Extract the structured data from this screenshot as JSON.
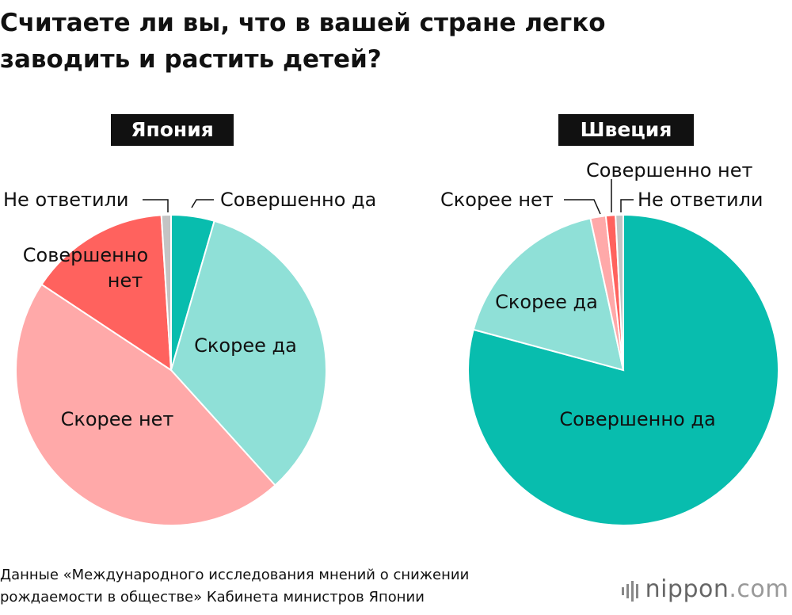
{
  "header": {
    "title": "Считаете ли вы, что в вашей стране легко заводить и растить детей?"
  },
  "footer": {
    "source_line1": "Данные «Международного исследования мнений о снижении",
    "source_line2": "рождаемости в обществе» Кабинета министров Японии",
    "logo_name": "nippon",
    "logo_suffix": ".com"
  },
  "chart_data": [
    {
      "type": "pie",
      "title": "Япония",
      "slices": [
        {
          "label": "Совершенно да",
          "value": 4.5,
          "color": "#08bdae"
        },
        {
          "label": "Скорее да",
          "value": 33.8,
          "color": "#8fe0d7"
        },
        {
          "label": "Скорее нет",
          "value": 46.0,
          "color": "#ffa9a9"
        },
        {
          "label": "Совершенно нет",
          "value": 14.7,
          "color": "#ff625e"
        },
        {
          "label": "Не ответили",
          "value": 1.0,
          "color": "#c4c4c4"
        }
      ]
    },
    {
      "type": "pie",
      "title": "Швеция",
      "slices": [
        {
          "label": "Совершенно да",
          "value": 79.2,
          "color": "#08bdae"
        },
        {
          "label": "Скорее да",
          "value": 17.4,
          "color": "#8fe0d7"
        },
        {
          "label": "Скорее нет",
          "value": 1.6,
          "color": "#ffa9a9"
        },
        {
          "label": "Совершенно нет",
          "value": 1.0,
          "color": "#ff625e"
        },
        {
          "label": "Не ответили",
          "value": 0.8,
          "color": "#c4c4c4"
        }
      ]
    }
  ]
}
